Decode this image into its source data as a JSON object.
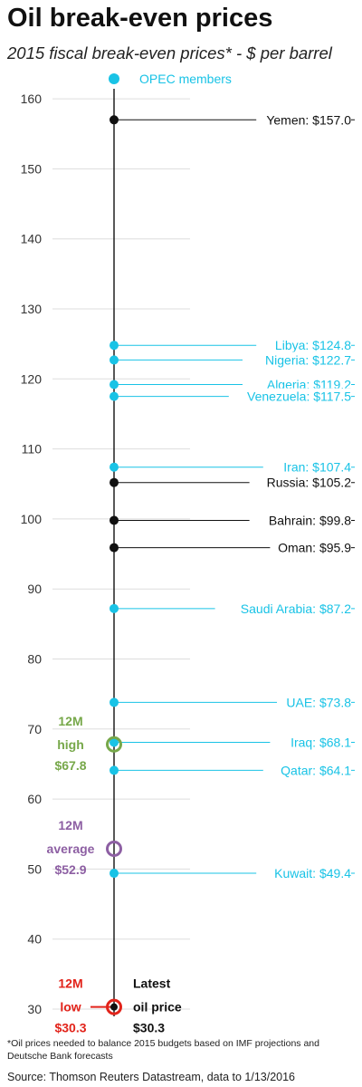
{
  "title": "Oil break-even prices",
  "subtitle": "2015 fiscal break-even prices* - $ per barrel",
  "legend": {
    "label": "OPEC members",
    "placement": "top"
  },
  "colors": {
    "opec": "#19c3e6",
    "non_opec": "#111111",
    "high": "#77a84a",
    "average": "#8d5fa3",
    "low": "#e2231a",
    "grid": "#dddddd"
  },
  "chart_data": {
    "type": "scatter",
    "ylim": [
      30,
      160
    ],
    "yticks": [
      30,
      40,
      50,
      60,
      70,
      80,
      90,
      100,
      110,
      120,
      130,
      140,
      150,
      160
    ],
    "grid": true,
    "points": [
      {
        "label": "Yemen: $157.0",
        "value": 157.0,
        "opec": false
      },
      {
        "label": "Libya: $124.8",
        "value": 124.8,
        "opec": true
      },
      {
        "label": "Nigeria: $122.7",
        "value": 122.7,
        "opec": true
      },
      {
        "label": "Algeria: $119.2",
        "value": 119.2,
        "opec": true
      },
      {
        "label": "Venezuela: $117.5",
        "value": 117.5,
        "opec": true
      },
      {
        "label": "Iran: $107.4",
        "value": 107.4,
        "opec": true
      },
      {
        "label": "Russia: $105.2",
        "value": 105.2,
        "opec": false
      },
      {
        "label": "Bahrain: $99.8",
        "value": 99.8,
        "opec": false
      },
      {
        "label": "Oman: $95.9",
        "value": 95.9,
        "opec": false
      },
      {
        "label": "Saudi Arabia: $87.2",
        "value": 87.2,
        "opec": true
      },
      {
        "label": "UAE: $73.8",
        "value": 73.8,
        "opec": true
      },
      {
        "label": "Iraq: $68.1",
        "value": 68.1,
        "opec": true
      },
      {
        "label": "Qatar: $64.1",
        "value": 64.1,
        "opec": true
      },
      {
        "label": "Kuwait: $49.4",
        "value": 49.4,
        "opec": true
      }
    ],
    "markers": [
      {
        "key": "high",
        "lines": [
          "12M",
          "high",
          "$67.8"
        ],
        "value": 67.8
      },
      {
        "key": "average",
        "lines": [
          "12M",
          "average",
          "$52.9"
        ],
        "value": 52.9
      },
      {
        "key": "low",
        "lines": [
          "12M",
          "low",
          "$30.3"
        ],
        "value": 30.3
      }
    ],
    "latest": {
      "lines": [
        "Latest",
        "oil price",
        "$30.3"
      ],
      "value": 30.3
    }
  },
  "footnote": "*Oil prices needed to balance 2015 budgets based on IMF projections and Deutsche Bank forecasts",
  "source": "Source: Thomson Reuters Datastream, data to 1/13/2016"
}
